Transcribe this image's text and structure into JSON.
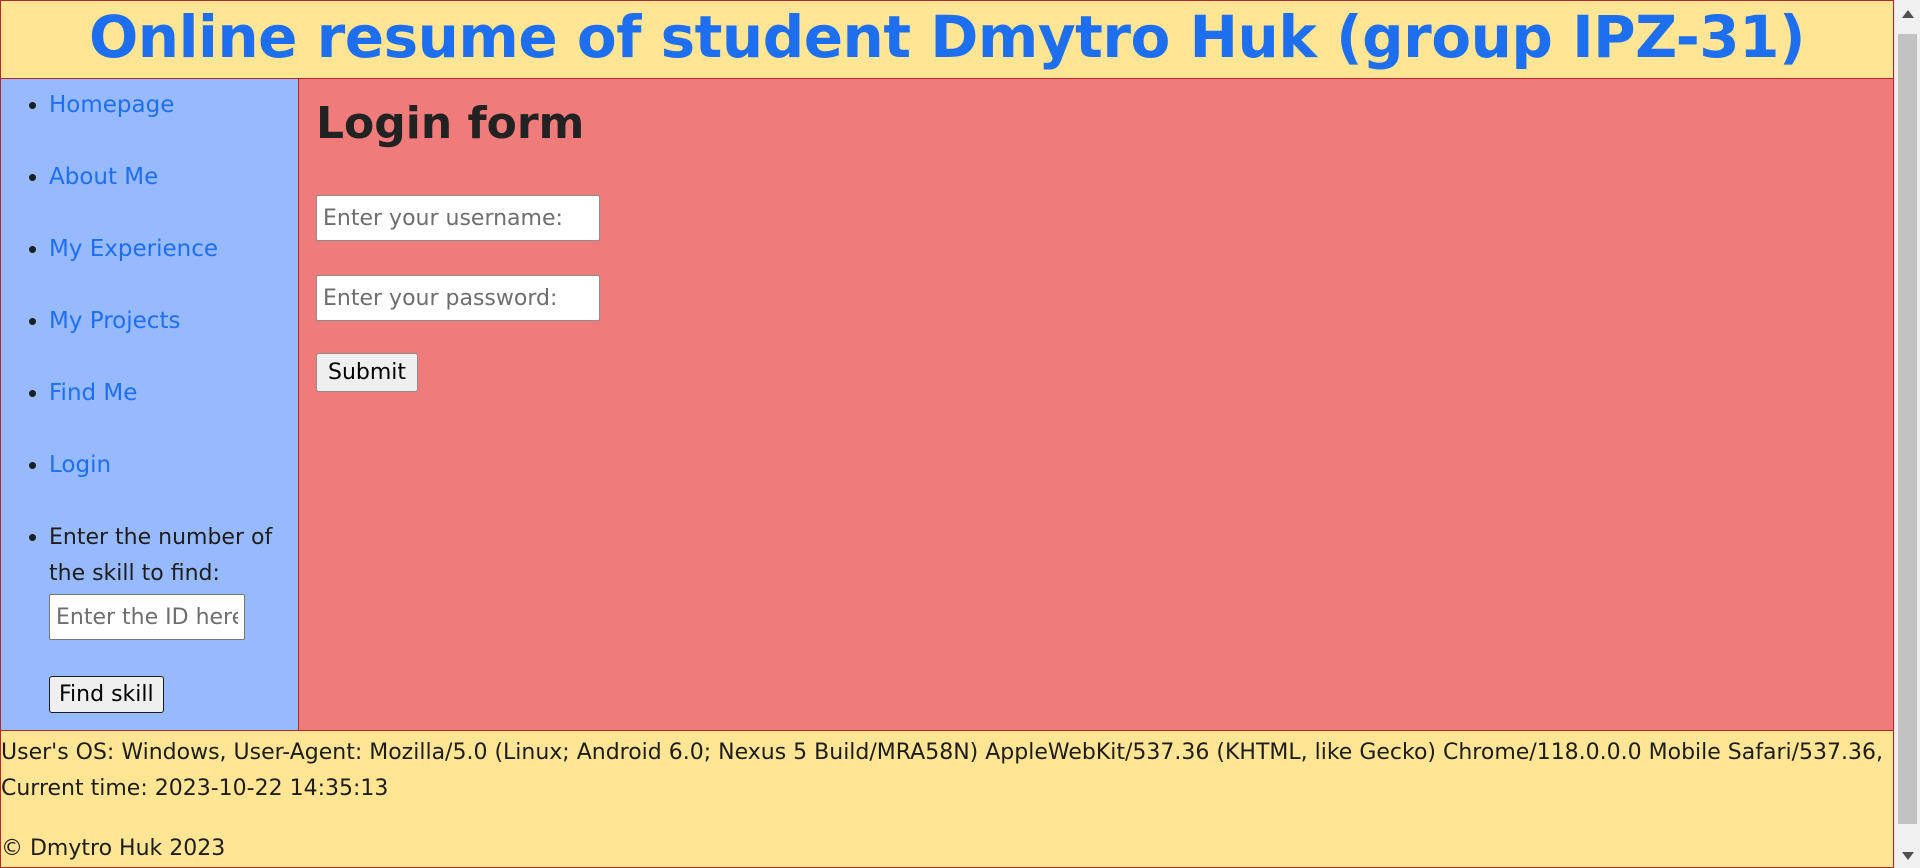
{
  "header": {
    "title": "Online resume of student Dmytro Huk (group IPZ-31)"
  },
  "sidebar": {
    "items": [
      {
        "label": "Homepage"
      },
      {
        "label": "About Me"
      },
      {
        "label": "My Experience"
      },
      {
        "label": "My Projects"
      },
      {
        "label": "Find Me"
      },
      {
        "label": "Login"
      }
    ],
    "skill_search": {
      "label": "Enter the number of the skill to find:",
      "placeholder": "Enter the ID here",
      "button_label": "Find skill"
    }
  },
  "main": {
    "heading": "Login form",
    "username_placeholder": "Enter your username:",
    "password_placeholder": "Enter your password:",
    "submit_label": "Submit"
  },
  "footer": {
    "info": "User's OS: Windows, User-Agent: Mozilla/5.0 (Linux; Android 6.0; Nexus 5 Build/MRA58N) AppleWebKit/537.36 (KHTML, like Gecko) Chrome/118.0.0.0 Mobile Safari/537.36, Current time: 2023-10-22 14:35:13",
    "copyright": "© Dmytro Huk 2023"
  },
  "colors": {
    "header_bg": "#ffe594",
    "title": "#1d6ff0",
    "sidebar_bg": "#97baff",
    "main_bg": "#ef7b7b",
    "border": "#b0282a"
  }
}
